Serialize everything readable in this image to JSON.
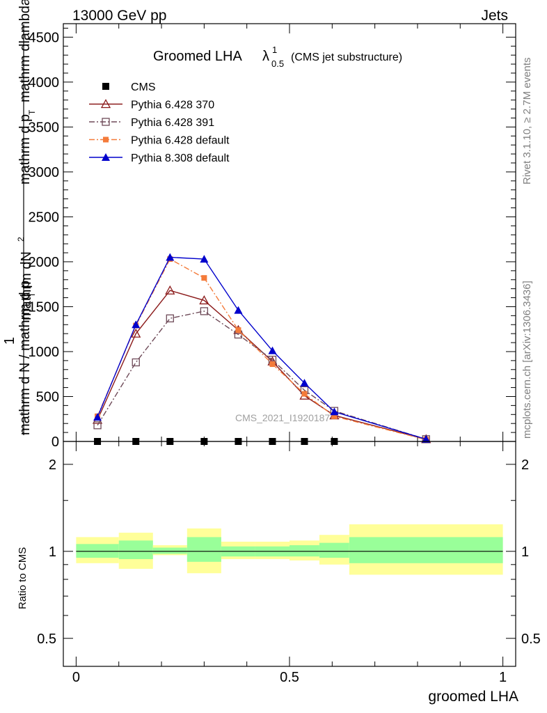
{
  "header": {
    "left": "13000 GeV pp",
    "right": "Jets"
  },
  "side_labels": {
    "rivet": "Rivet 3.1.10, ≥ 2.7M events",
    "mcplots": "mcplots.cern.ch [arXiv:1306.3436]"
  },
  "watermark": "CMS_2021_I1920187",
  "colors": {
    "cms": "#000000",
    "pythia6_370": "#8b1a1a",
    "pythia6_391": "#6e4a58",
    "pythia6_default": "#f47b3a",
    "pythia8_default": "#0000cc",
    "band_inner": "#99ff99",
    "band_outer": "#ffff99"
  },
  "chart_data": [
    {
      "type": "line",
      "title": "Groomed LHA",
      "title_symbol": "λ",
      "title_sup": "1",
      "title_sub": "0.5",
      "subtitle": "(CMS jet substructure)",
      "ylabel_top": "mathrm d",
      "ylabel_top2": "N",
      "ylabel_bot": "mathrm d",
      "ylabel_frac_num": "1",
      "ylabel_frac_den": "mathrm d N / mathrm d p",
      "ylabel_frac_den_sub": "T",
      "ylabel_num": "mathrm dN",
      "ylabel_num_sup": "2",
      "ylabel_den": "mathrm d p",
      "ylabel_den_sub": "T",
      "ylabel_den2": "mathrm dlambda",
      "xlim": [
        -0.03,
        1.03
      ],
      "ylim": [
        0,
        4650
      ],
      "yticks": [
        0,
        500,
        1000,
        1500,
        2000,
        2500,
        3000,
        3500,
        4000,
        4500
      ],
      "yticklabels": [
        "0",
        "500",
        "1000",
        "1500",
        "2000",
        "2500",
        "3000",
        "3500",
        "4000",
        "4500"
      ],
      "legend_position": "top-left",
      "series": [
        {
          "name": "CMS",
          "marker": "filled-square",
          "x": [
            0.05,
            0.14,
            0.22,
            0.3,
            0.38,
            0.46,
            0.535,
            0.605
          ],
          "y": [
            0,
            0,
            0,
            0,
            0,
            0,
            0,
            0
          ]
        },
        {
          "name": "Pythia 6.428 370",
          "marker": "open-triangle",
          "line": "solid",
          "x": [
            0.05,
            0.14,
            0.22,
            0.3,
            0.38,
            0.46,
            0.535,
            0.605,
            0.82
          ],
          "y": [
            240,
            1200,
            1680,
            1570,
            1240,
            890,
            510,
            290,
            25
          ]
        },
        {
          "name": "Pythia 6.428 391",
          "marker": "open-square",
          "line": "dashdot",
          "x": [
            0.05,
            0.14,
            0.22,
            0.3,
            0.38,
            0.46,
            0.535,
            0.605,
            0.82
          ],
          "y": [
            180,
            880,
            1370,
            1450,
            1190,
            910,
            570,
            340,
            25
          ]
        },
        {
          "name": "Pythia 6.428 default",
          "marker": "filled-square-small",
          "line": "dashdot",
          "x": [
            0.05,
            0.14,
            0.22,
            0.3,
            0.38,
            0.46,
            0.535,
            0.605,
            0.82
          ],
          "y": [
            280,
            1290,
            2030,
            1820,
            1240,
            860,
            530,
            280,
            20
          ]
        },
        {
          "name": "Pythia 8.308 default",
          "marker": "filled-triangle",
          "line": "solid",
          "x": [
            0.05,
            0.14,
            0.22,
            0.3,
            0.38,
            0.46,
            0.535,
            0.605,
            0.82
          ],
          "y": [
            270,
            1300,
            2050,
            2030,
            1460,
            1010,
            650,
            330,
            25
          ]
        }
      ]
    },
    {
      "type": "area",
      "ylabel": "Ratio to CMS",
      "xlabel": "groomed LHA",
      "xlim": [
        -0.03,
        1.03
      ],
      "ylim": [
        0.4,
        2.4
      ],
      "yscale": "log",
      "yticks": [
        0.5,
        1,
        2
      ],
      "yticklabels": [
        "0.5",
        "1",
        "2"
      ],
      "xticks": [
        0,
        0.5,
        1
      ],
      "xticklabels": [
        "0",
        "0.5",
        "1"
      ],
      "bins": [
        {
          "lo": 0.0,
          "hi": 0.1,
          "inner": [
            0.95,
            1.06
          ],
          "outer": [
            0.91,
            1.12
          ]
        },
        {
          "lo": 0.1,
          "hi": 0.18,
          "inner": [
            0.94,
            1.09
          ],
          "outer": [
            0.87,
            1.16
          ]
        },
        {
          "lo": 0.18,
          "hi": 0.26,
          "inner": [
            0.98,
            1.03
          ],
          "outer": [
            0.97,
            1.05
          ]
        },
        {
          "lo": 0.26,
          "hi": 0.34,
          "inner": [
            0.92,
            1.12
          ],
          "outer": [
            0.84,
            1.2
          ]
        },
        {
          "lo": 0.34,
          "hi": 0.42,
          "inner": [
            0.96,
            1.04
          ],
          "outer": [
            0.94,
            1.08
          ]
        },
        {
          "lo": 0.42,
          "hi": 0.5,
          "inner": [
            0.96,
            1.04
          ],
          "outer": [
            0.94,
            1.08
          ]
        },
        {
          "lo": 0.5,
          "hi": 0.57,
          "inner": [
            0.96,
            1.05
          ],
          "outer": [
            0.93,
            1.09
          ]
        },
        {
          "lo": 0.57,
          "hi": 0.64,
          "inner": [
            0.95,
            1.07
          ],
          "outer": [
            0.9,
            1.14
          ]
        },
        {
          "lo": 0.64,
          "hi": 1.0,
          "inner": [
            0.91,
            1.12
          ],
          "outer": [
            0.83,
            1.24
          ]
        }
      ]
    }
  ]
}
